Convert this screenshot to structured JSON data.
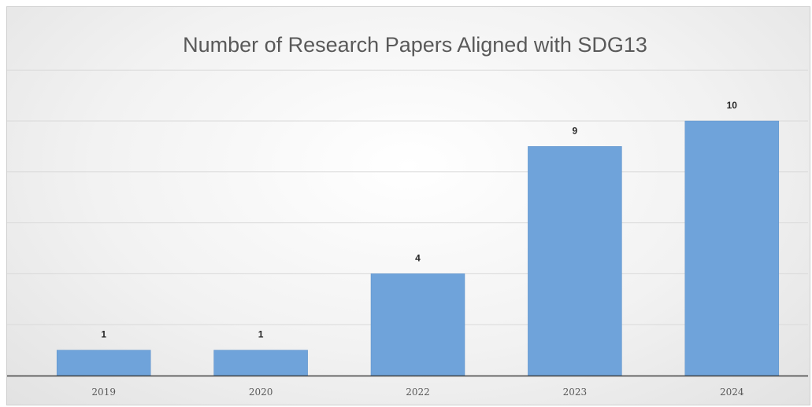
{
  "chart_data": {
    "type": "bar",
    "title": "Number of Research Papers Aligned with SDG13",
    "categories": [
      "2019",
      "2020",
      "2022",
      "2023",
      "2024"
    ],
    "values": [
      1,
      1,
      4,
      9,
      10
    ],
    "data_labels": [
      "1",
      "1",
      "4",
      "9",
      "10"
    ],
    "xlabel": "",
    "ylabel": "",
    "ylim": [
      0,
      14
    ],
    "y_gridline_step": 2,
    "grid": true,
    "y_tick_labels_shown": false,
    "legend": "none",
    "colors": {
      "bar": "#6fa3da",
      "bar_stroke": "#5b8fc8",
      "gridline": "#d9d9d9",
      "axis": "#404040"
    }
  }
}
